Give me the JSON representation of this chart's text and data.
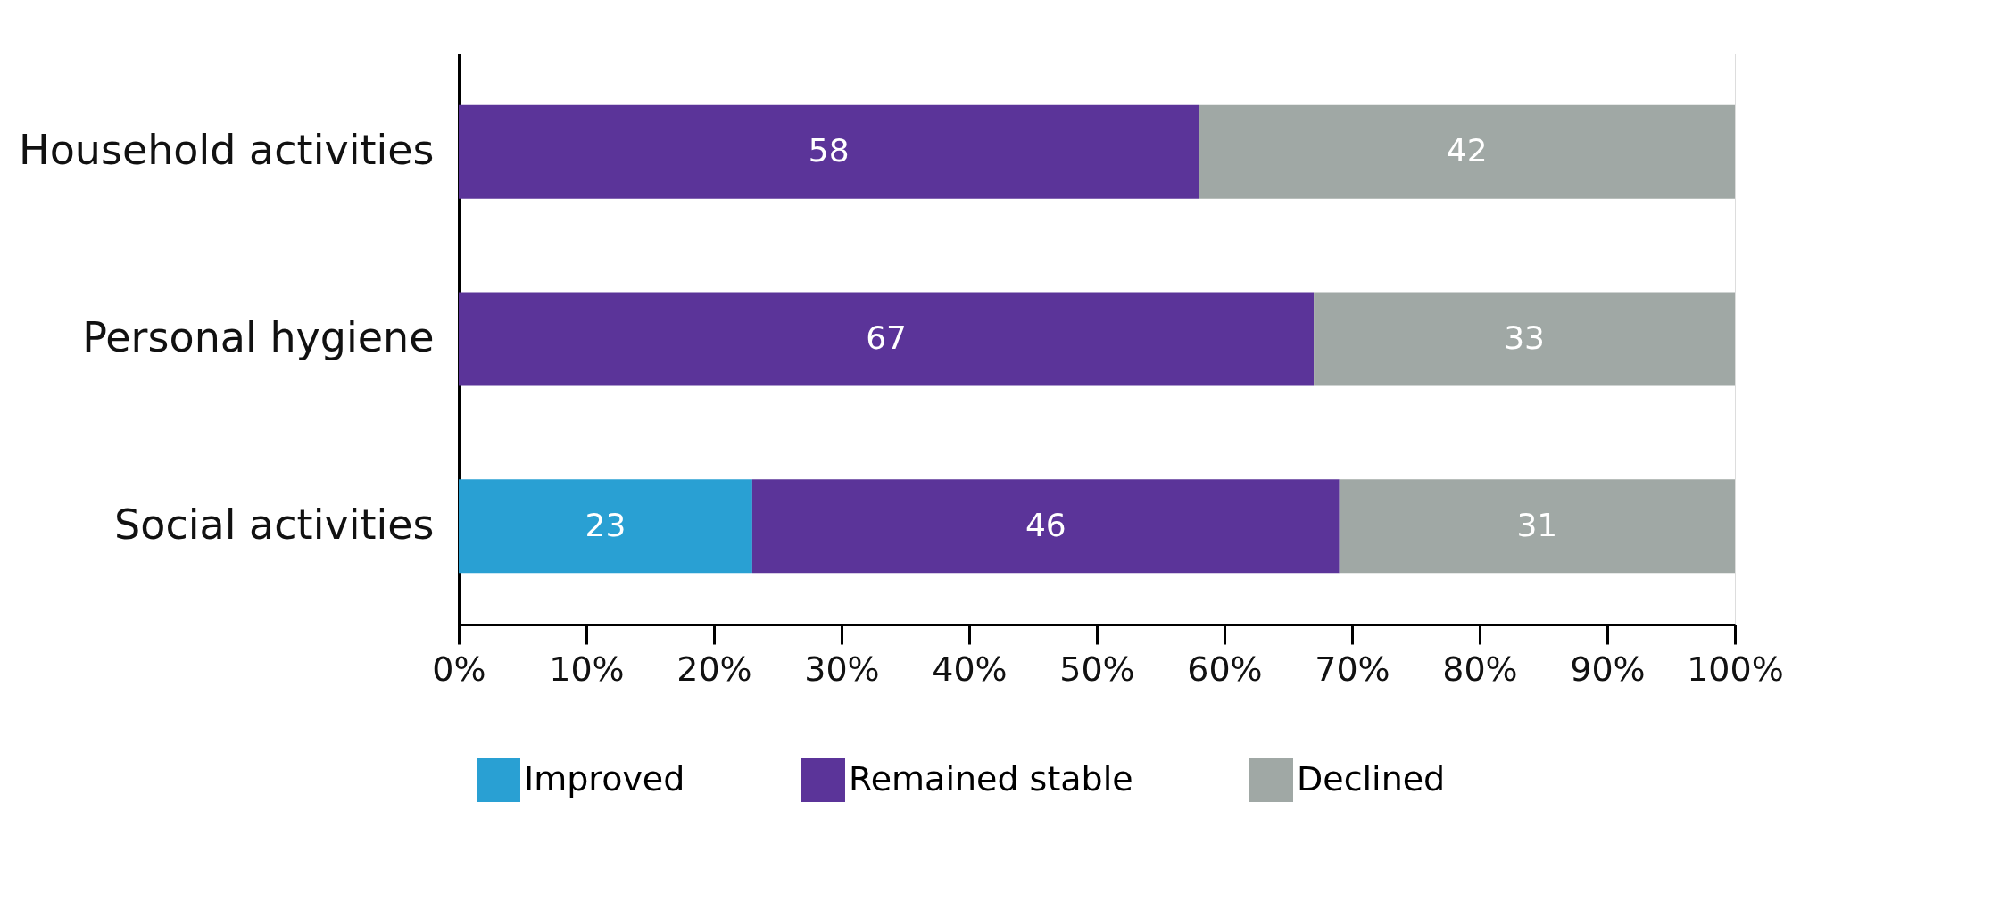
{
  "chart_data": {
    "type": "bar",
    "orientation": "horizontal",
    "stacked": true,
    "categories": [
      "Household activities",
      "Personal hygiene",
      "Social activities"
    ],
    "series": [
      {
        "name": "Improved",
        "color": "#29a0d3",
        "values": [
          null,
          null,
          23
        ]
      },
      {
        "name": "Remained stable",
        "color": "#5b3499",
        "values": [
          58,
          67,
          46
        ]
      },
      {
        "name": "Declined",
        "color": "#a0a8a5",
        "values": [
          42,
          33,
          31
        ]
      }
    ],
    "xlim": [
      0,
      100
    ],
    "xticks": [
      {
        "value": 0,
        "label": "0%"
      },
      {
        "value": 10,
        "label": "10%"
      },
      {
        "value": 20,
        "label": "20%"
      },
      {
        "value": 30,
        "label": "30%"
      },
      {
        "value": 40,
        "label": "40%"
      },
      {
        "value": 50,
        "label": "50%"
      },
      {
        "value": 60,
        "label": "60%"
      },
      {
        "value": 70,
        "label": "70%"
      },
      {
        "value": 80,
        "label": "80%"
      },
      {
        "value": 90,
        "label": "90%"
      },
      {
        "value": 100,
        "label": "100%"
      }
    ],
    "data_labels": true,
    "legend": "bottom",
    "grid": false
  }
}
